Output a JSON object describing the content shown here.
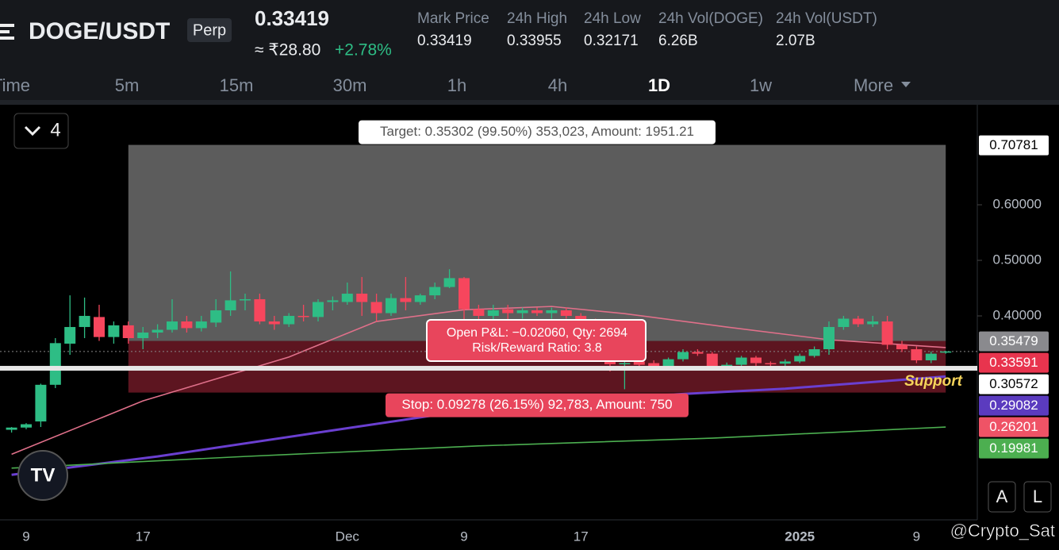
{
  "header": {
    "symbol": "DOGE/USDT",
    "badge": "Perp",
    "price": "0.33419",
    "price_inr": "≈ ₹28.80",
    "change": "+2.78%",
    "stats": [
      {
        "label": "Mark Price",
        "value": "0.33419"
      },
      {
        "label": "24h High",
        "value": "0.33955"
      },
      {
        "label": "24h Low",
        "value": "0.32171"
      },
      {
        "label": "24h Vol(DOGE)",
        "value": "6.26B"
      },
      {
        "label": "24h Vol(USDT)",
        "value": "2.07B"
      }
    ]
  },
  "timeframes": {
    "items": [
      "Time",
      "5m",
      "15m",
      "30m",
      "1h",
      "4h",
      "1D",
      "1w",
      "More"
    ],
    "active": 6
  },
  "indicator_toggle": "4",
  "chart": {
    "type": "candlestick",
    "ylim": [
      0.0329,
      0.7829
    ],
    "yticks": [
      {
        "value": 0.6,
        "label": "0.60000"
      },
      {
        "value": 0.5,
        "label": "0.50000"
      },
      {
        "value": 0.4,
        "label": "0.40000"
      }
    ],
    "xticks": [
      {
        "index": 1,
        "label": "9"
      },
      {
        "index": 9,
        "label": "17"
      },
      {
        "index": 23,
        "label": "Dec"
      },
      {
        "index": 31,
        "label": "9"
      },
      {
        "index": 39,
        "label": "17"
      },
      {
        "index": 54,
        "label": "2025"
      },
      {
        "index": 62,
        "label": "9"
      }
    ],
    "up_color": "#2ebd85",
    "down_color": "#f6465d",
    "candles": [
      [
        0.195,
        0.2,
        0.19,
        0.199
      ],
      [
        0.199,
        0.207,
        0.196,
        0.205
      ],
      [
        0.21,
        0.278,
        0.2,
        0.276
      ],
      [
        0.276,
        0.36,
        0.27,
        0.351
      ],
      [
        0.35,
        0.437,
        0.33,
        0.38
      ],
      [
        0.38,
        0.433,
        0.36,
        0.4
      ],
      [
        0.398,
        0.42,
        0.355,
        0.362
      ],
      [
        0.362,
        0.39,
        0.35,
        0.383
      ],
      [
        0.383,
        0.39,
        0.35,
        0.36
      ],
      [
        0.36,
        0.38,
        0.34,
        0.37
      ],
      [
        0.37,
        0.385,
        0.36,
        0.375
      ],
      [
        0.375,
        0.43,
        0.37,
        0.39
      ],
      [
        0.39,
        0.4,
        0.37,
        0.378
      ],
      [
        0.378,
        0.4,
        0.372,
        0.39
      ],
      [
        0.388,
        0.43,
        0.38,
        0.41
      ],
      [
        0.41,
        0.48,
        0.4,
        0.428
      ],
      [
        0.428,
        0.44,
        0.41,
        0.43
      ],
      [
        0.43,
        0.44,
        0.385,
        0.39
      ],
      [
        0.39,
        0.4,
        0.375,
        0.385
      ],
      [
        0.385,
        0.405,
        0.38,
        0.4
      ],
      [
        0.4,
        0.42,
        0.39,
        0.398
      ],
      [
        0.398,
        0.43,
        0.39,
        0.425
      ],
      [
        0.425,
        0.435,
        0.41,
        0.428
      ],
      [
        0.425,
        0.46,
        0.42,
        0.44
      ],
      [
        0.44,
        0.47,
        0.4,
        0.425
      ],
      [
        0.425,
        0.44,
        0.39,
        0.405
      ],
      [
        0.405,
        0.44,
        0.4,
        0.432
      ],
      [
        0.432,
        0.47,
        0.41,
        0.425
      ],
      [
        0.425,
        0.44,
        0.42,
        0.437
      ],
      [
        0.437,
        0.46,
        0.43,
        0.452
      ],
      [
        0.452,
        0.484,
        0.45,
        0.468
      ],
      [
        0.468,
        0.47,
        0.39,
        0.412
      ],
      [
        0.412,
        0.42,
        0.37,
        0.4
      ],
      [
        0.4,
        0.42,
        0.38,
        0.41
      ],
      [
        0.412,
        0.42,
        0.39,
        0.405
      ],
      [
        0.405,
        0.415,
        0.395,
        0.41
      ],
      [
        0.41,
        0.415,
        0.4,
        0.405
      ],
      [
        0.405,
        0.415,
        0.395,
        0.41
      ],
      [
        0.41,
        0.415,
        0.395,
        0.4
      ],
      [
        0.4,
        0.405,
        0.385,
        0.39
      ],
      [
        0.39,
        0.395,
        0.32,
        0.328
      ],
      [
        0.34,
        0.345,
        0.3,
        0.313
      ],
      [
        0.313,
        0.33,
        0.268,
        0.315
      ],
      [
        0.318,
        0.322,
        0.305,
        0.312
      ],
      [
        0.315,
        0.32,
        0.302,
        0.308
      ],
      [
        0.31,
        0.325,
        0.305,
        0.322
      ],
      [
        0.322,
        0.34,
        0.318,
        0.335
      ],
      [
        0.335,
        0.34,
        0.328,
        0.332
      ],
      [
        0.332,
        0.335,
        0.305,
        0.31
      ],
      [
        0.31,
        0.316,
        0.305,
        0.312
      ],
      [
        0.312,
        0.328,
        0.308,
        0.325
      ],
      [
        0.325,
        0.328,
        0.31,
        0.315
      ],
      [
        0.315,
        0.318,
        0.308,
        0.314
      ],
      [
        0.314,
        0.322,
        0.31,
        0.318
      ],
      [
        0.318,
        0.332,
        0.315,
        0.328
      ],
      [
        0.328,
        0.345,
        0.325,
        0.34
      ],
      [
        0.34,
        0.39,
        0.33,
        0.38
      ],
      [
        0.38,
        0.4,
        0.375,
        0.395
      ],
      [
        0.395,
        0.4,
        0.38,
        0.385
      ],
      [
        0.385,
        0.4,
        0.38,
        0.39
      ],
      [
        0.39,
        0.4,
        0.34,
        0.348
      ],
      [
        0.348,
        0.355,
        0.335,
        0.34
      ],
      [
        0.34,
        0.345,
        0.315,
        0.32
      ],
      [
        0.32,
        0.336,
        0.315,
        0.332
      ],
      [
        0.334,
        0.337,
        0.332,
        0.336
      ]
    ],
    "ma_lines": [
      {
        "color": "#e0708a",
        "x": [
          0,
          9,
          19,
          25,
          31,
          37,
          42,
          49,
          56,
          64
        ],
        "values": [
          0.151,
          0.247,
          0.326,
          0.39,
          0.411,
          0.417,
          0.404,
          0.38,
          0.357,
          0.343
        ]
      },
      {
        "color": "#6a3fd0",
        "x": [
          0,
          10,
          21,
          32,
          42,
          53,
          64
        ],
        "values": [
          0.114,
          0.147,
          0.19,
          0.233,
          0.254,
          0.269,
          0.291
        ]
      },
      {
        "color": "#4caf50",
        "x": [
          0,
          16,
          32,
          48,
          64
        ],
        "values": [
          0.126,
          0.147,
          0.166,
          0.18,
          0.2
        ]
      }
    ],
    "position": {
      "from": 8,
      "to": 64,
      "entry": 0.35479,
      "target": 0.70781,
      "stop": 0.26201,
      "target_label": "Target: 0.35302 (99.50%) 353,023, Amount: 1951.21",
      "pnl_label": "Open P&L: −0.02060, Qty: 2694",
      "rr_label": "Risk/Reward Ratio: 3.8",
      "stop_label": "Stop: 0.09278 (26.15%) 92,783, Amount: 750"
    },
    "support": {
      "value": 0.30572,
      "label": "Support"
    },
    "last_price": 0.33591,
    "price_tags": [
      {
        "value": 0.70781,
        "bg": "#ffffff",
        "fg": "#000000"
      },
      {
        "value": 0.35479,
        "bg": "#8a8a8e",
        "fg": "#ffffff"
      },
      {
        "value": 0.33591,
        "bg": "#e8344e",
        "fg": "#ffffff"
      },
      {
        "value": 0.30572,
        "bg": "#ffffff",
        "fg": "#000000"
      },
      {
        "value": 0.29082,
        "bg": "#5b3bbf",
        "fg": "#ffffff"
      },
      {
        "value": 0.26201,
        "bg": "#ef5366",
        "fg": "#ffffff"
      },
      {
        "value": 0.19981,
        "bg": "#4caf50",
        "fg": "#ffffff"
      }
    ]
  },
  "buttons": [
    "A",
    "L"
  ],
  "watermark": "@Crypto_Sat"
}
